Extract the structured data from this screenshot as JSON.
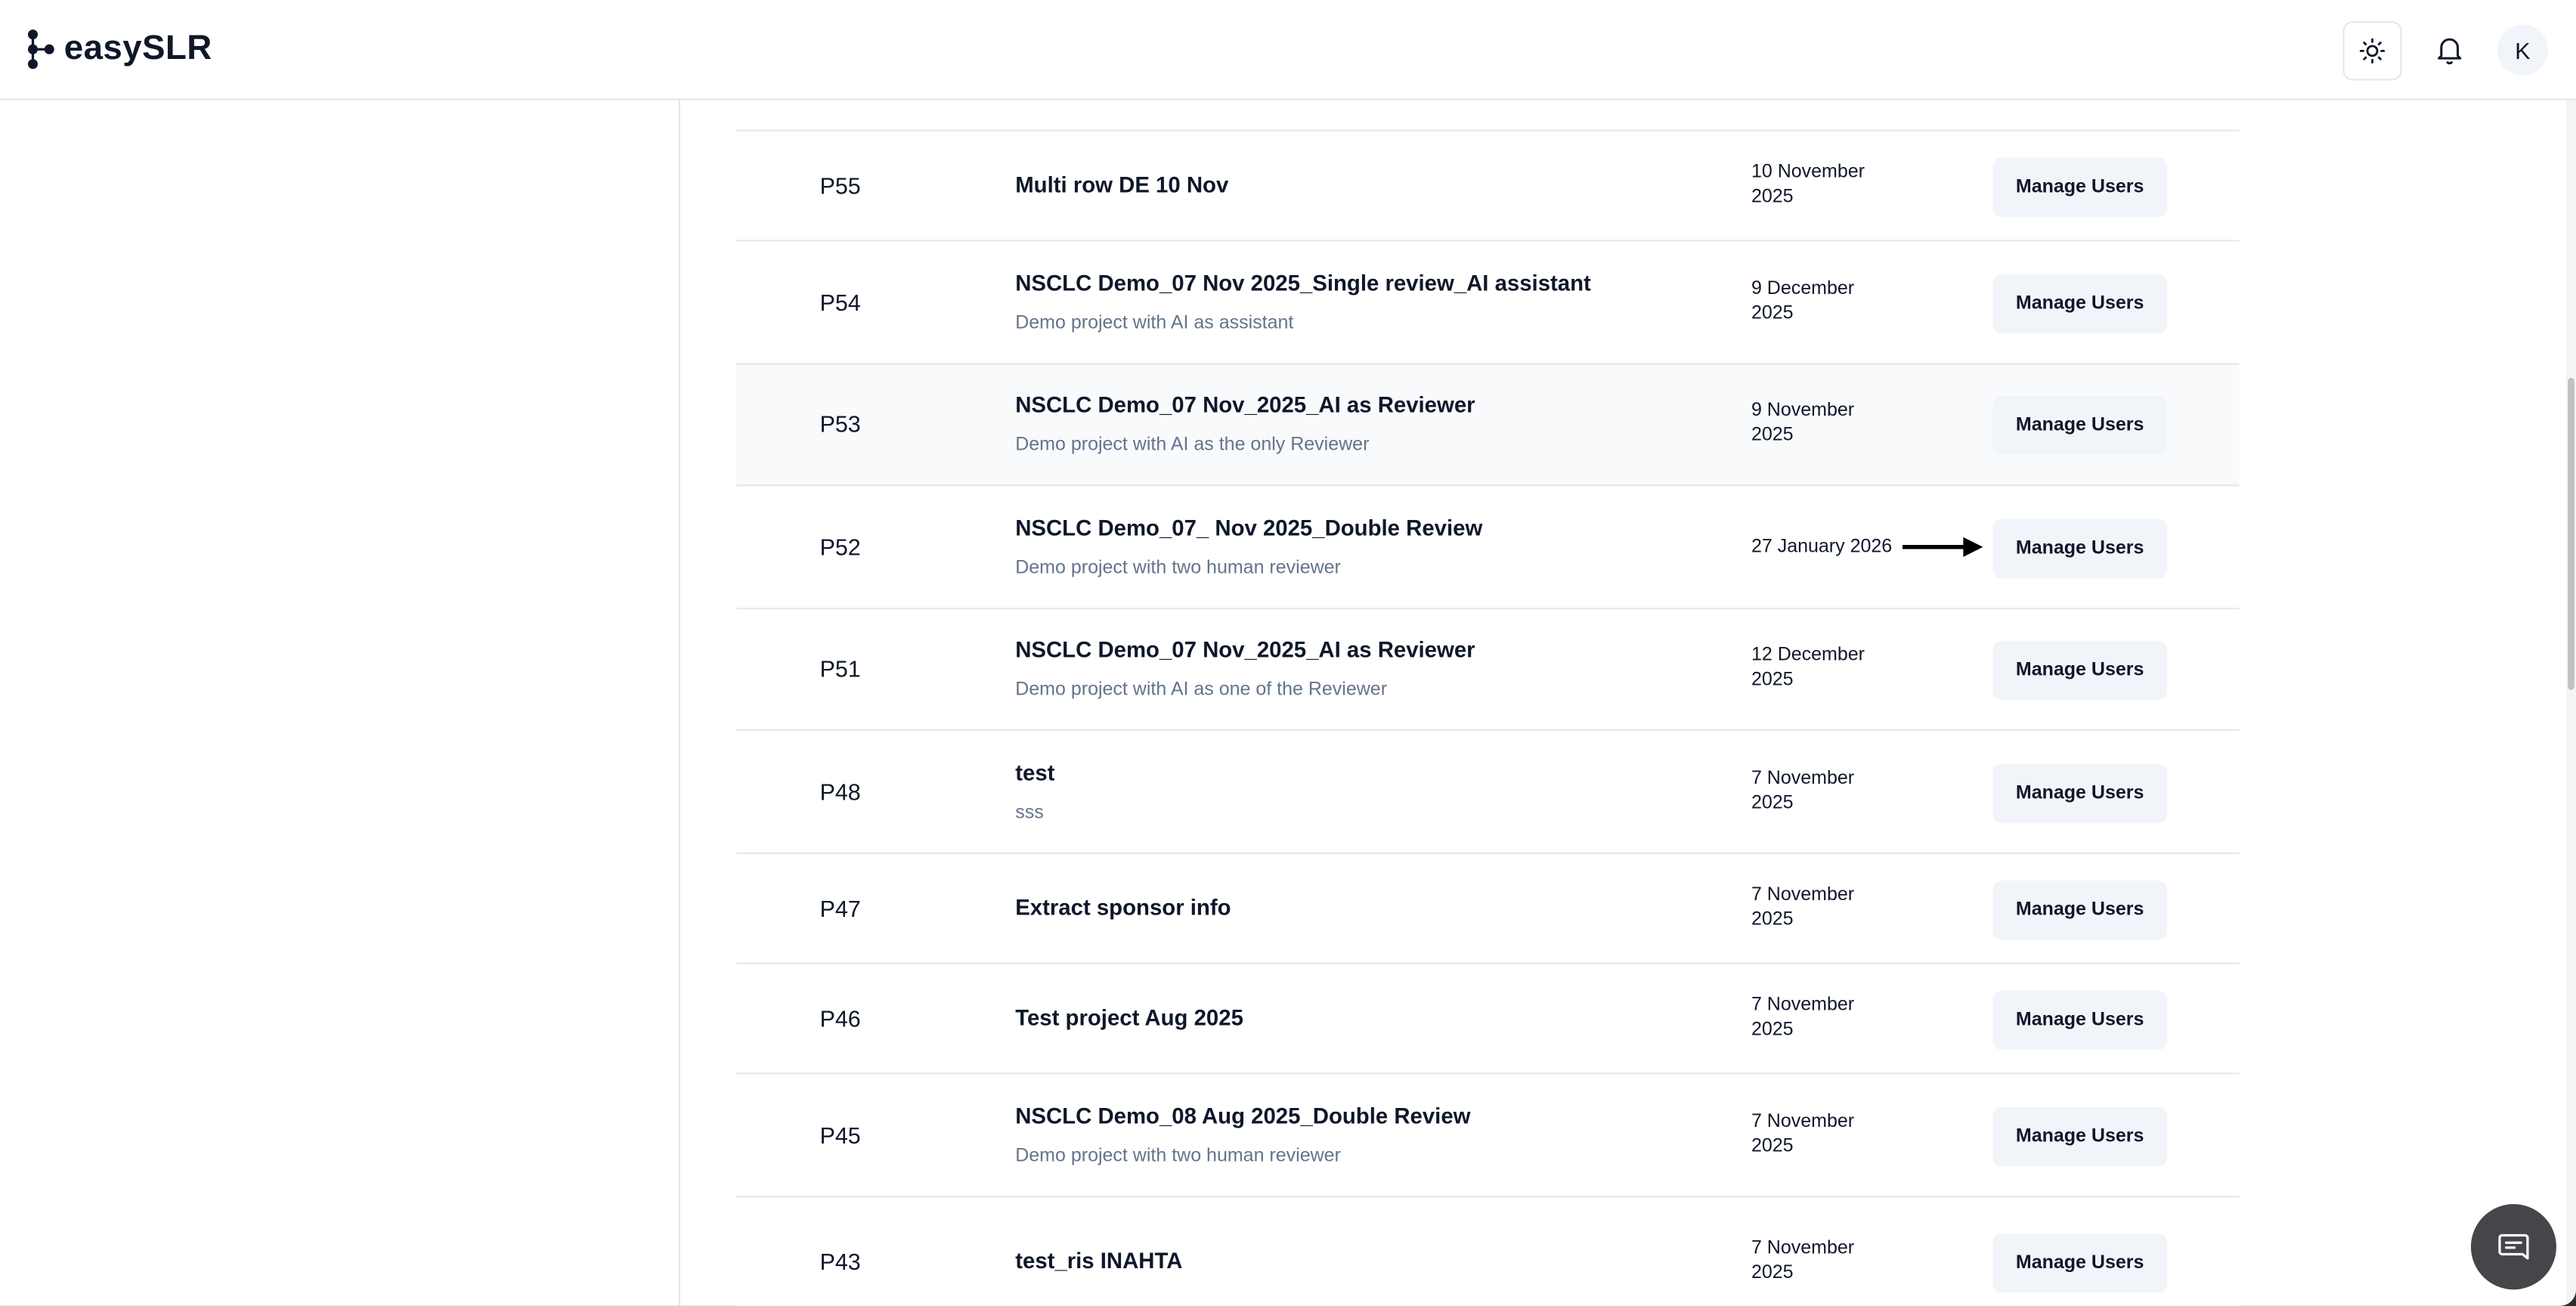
{
  "header": {
    "brand": "easySLR",
    "avatar_initial": "K",
    "icons": [
      "sun-icon",
      "bell-icon"
    ]
  },
  "projects": [
    {
      "id": "P55",
      "title": "Multi row DE 10 Nov",
      "description": "",
      "date": "10 November 2025",
      "action": "Manage Users"
    },
    {
      "id": "P54",
      "title": "NSCLC Demo_07 Nov 2025_Single review_AI assistant",
      "description": "Demo project with AI as assistant",
      "date": "9 December 2025",
      "action": "Manage Users"
    },
    {
      "id": "P53",
      "title": "NSCLC Demo_07 Nov_2025_AI as Reviewer",
      "description": "Demo project with AI as the only Reviewer",
      "date": "9 November 2025",
      "action": "Manage Users"
    },
    {
      "id": "P52",
      "title": "NSCLC Demo_07_ Nov 2025_Double Review",
      "description": "Demo project with two human reviewer",
      "date": "27 January 2026",
      "action": "Manage Users"
    },
    {
      "id": "P51",
      "title": "NSCLC Demo_07 Nov_2025_AI as Reviewer",
      "description": "Demo project with AI as one of the Reviewer",
      "date": "12 December 2025",
      "action": "Manage Users"
    },
    {
      "id": "P48",
      "title": "test",
      "description": "sss",
      "date": "7 November 2025",
      "action": "Manage Users"
    },
    {
      "id": "P47",
      "title": "Extract sponsor info",
      "description": "",
      "date": "7 November 2025",
      "action": "Manage Users"
    },
    {
      "id": "P46",
      "title": "Test project Aug 2025",
      "description": "",
      "date": "7 November 2025",
      "action": "Manage Users"
    },
    {
      "id": "P45",
      "title": "NSCLC Demo_08 Aug 2025_Double Review",
      "description": "Demo project with two human reviewer",
      "date": "7 November 2025",
      "action": "Manage Users"
    },
    {
      "id": "P43",
      "title": "test_ris INAHTA",
      "description": "",
      "date": "7 November 2025",
      "action": "Manage Users"
    }
  ],
  "chat_icon": "chat-icon"
}
